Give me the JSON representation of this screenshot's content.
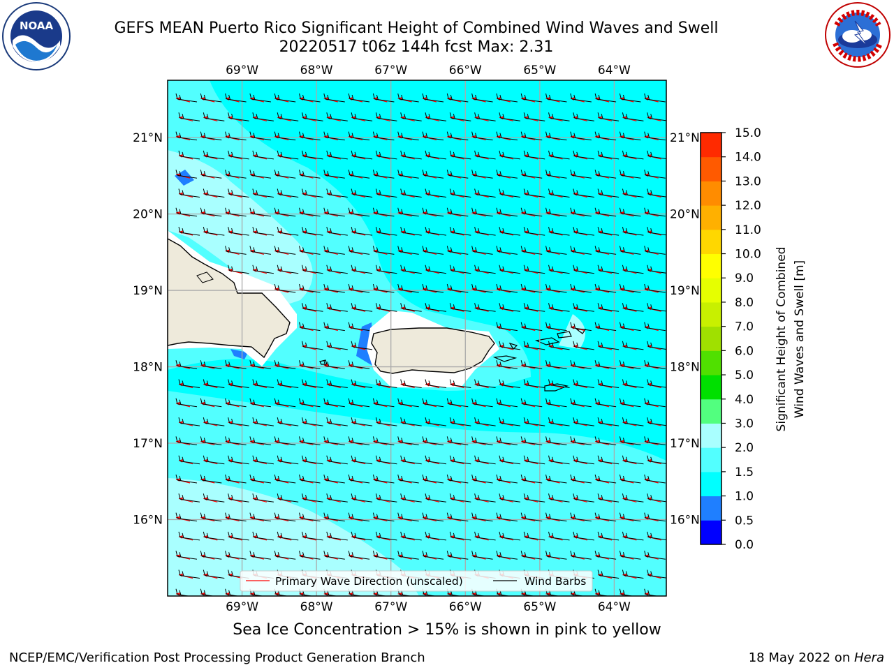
{
  "title_line1": "GEFS MEAN Puerto Rico Significant Height of Combined Wind Waves and Swell",
  "title_line2": "20220517 t06z 144h fcst   Max: 2.31",
  "logos": {
    "left": {
      "name": "NOAA",
      "text": "NOAA",
      "ring_text": "NATIONAL OCEANIC AND ATMOSPHERIC ADMINISTRATION · U.S. DEPARTMENT OF COMMERCE"
    },
    "right": {
      "name": "National Weather Service",
      "ring_text": "NATIONAL WEATHER SERVICE"
    }
  },
  "map": {
    "lon_labels": [
      "69°W",
      "68°W",
      "67°W",
      "66°W",
      "65°W",
      "64°W"
    ],
    "lat_labels": [
      "21°N",
      "20°N",
      "19°N",
      "18°N",
      "17°N",
      "16°N"
    ],
    "lat_labels_right": [
      "21°N",
      "20°N",
      "19°N",
      "18°N",
      "17°N",
      "16°N"
    ],
    "lon_range": [
      -70.0,
      -63.3
    ],
    "lat_range": [
      15.0,
      21.75
    ],
    "colors": {
      "land": "#eeeadb",
      "ocean_1_1_5": "#00ffff",
      "ocean_1_5_2": "#52ffff",
      "ocean_2_3": "#a9ffff",
      "shallow_0_5_1": "#1f7fff",
      "shallow_0_0_5": "#0000ff",
      "grid": "#aaaaaa",
      "wave_arrow": "#ff0000",
      "wind_barb": "#000000"
    }
  },
  "legend": {
    "wave_label": "Primary Wave Direction (unscaled)",
    "barb_label": "Wind Barbs"
  },
  "colorbar": {
    "label_line1": "Significant Height of Combined",
    "label_line2": "Wind Waves and Swell [m]",
    "ticks": [
      "0.0",
      "0.5",
      "1.0",
      "1.5",
      "2.0",
      "3.0",
      "4.0",
      "5.0",
      "6.0",
      "7.0",
      "8.0",
      "9.0",
      "10.0",
      "11.0",
      "12.0",
      "13.0",
      "14.0",
      "15.0"
    ],
    "colors": [
      "#0000ff",
      "#1f7fff",
      "#00ffff",
      "#52ffff",
      "#a9ffff",
      "#52ff7f",
      "#00e000",
      "#50e000",
      "#a0e000",
      "#c8f000",
      "#e6ff00",
      "#ffff00",
      "#ffd700",
      "#ffb000",
      "#ff8c00",
      "#ff5a00",
      "#ff2a00"
    ]
  },
  "caption": "Sea Ice Concentration > 15% is shown in pink to yellow",
  "footer_left": "NCEP/EMC/Verification Post Processing Product Generation Branch",
  "footer_right_prefix": "18 May 2022 on ",
  "footer_right_host": "Hera"
}
